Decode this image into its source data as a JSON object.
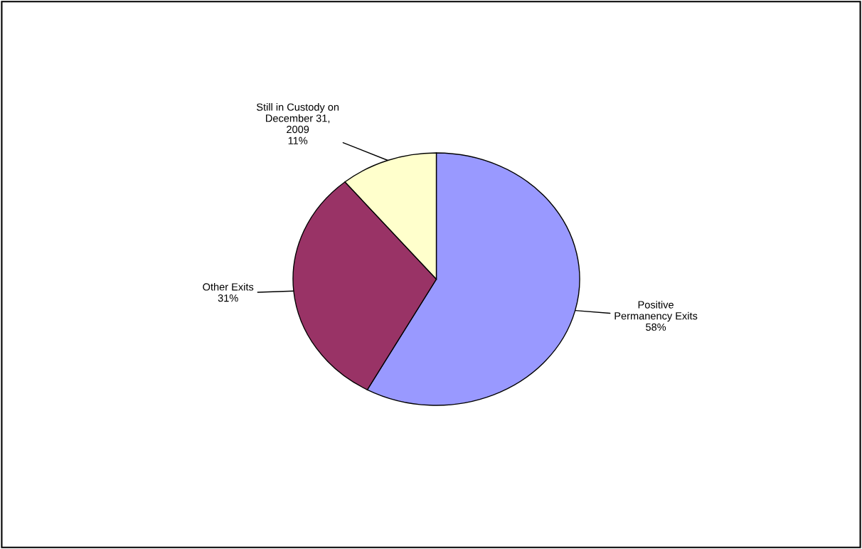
{
  "chart_data": {
    "type": "pie",
    "categories": [
      "Positive\nPermanency Exits",
      "Other Exits",
      "Still in Custody on\nDecember 31,\n2009"
    ],
    "values": [
      58,
      31,
      11
    ],
    "value_labels": [
      "58%",
      "31%",
      "11%"
    ],
    "colors": [
      "#9999ff",
      "#993366",
      "#ffffcc"
    ]
  }
}
